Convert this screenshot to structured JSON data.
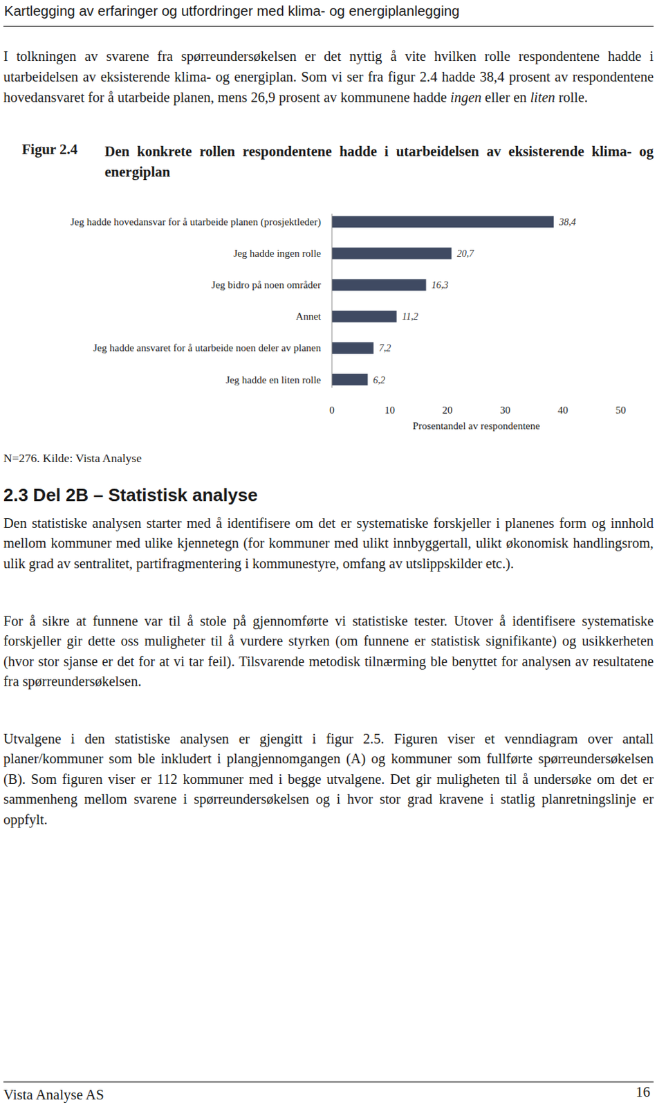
{
  "header": {
    "title": "Kartlegging av erfaringer og utfordringer med klima- og energiplanlegging"
  },
  "intro": {
    "runs": [
      {
        "text": "I tolkningen av svarene fra spørreundersøkelsen er det nyttig å vite hvilken rolle respondentene hadde i utarbeidelsen av eksisterende klima- og energiplan. Som vi ser fra figur 2.4 hadde 38,4 prosent av respondentene hovedansvaret for å utarbeide planen, mens 26,9 prosent av kommunene hadde ",
        "style": "normal"
      },
      {
        "text": "ingen",
        "style": "italic"
      },
      {
        "text": " eller en ",
        "style": "normal"
      },
      {
        "text": "liten",
        "style": "italic"
      },
      {
        "text": " rolle.",
        "style": "normal"
      }
    ]
  },
  "figure": {
    "label": "Figur 2.4",
    "caption": "Den konkrete rollen respondentene hadde i utarbeidelsen av eksisterende klima- og energiplan",
    "note": "N=276. Kilde: Vista Analyse"
  },
  "chart_data": {
    "type": "bar",
    "orientation": "horizontal",
    "categories": [
      "Jeg hadde hovedansvar for å utarbeide planen (prosjektleder)",
      "Jeg hadde ingen rolle",
      "Jeg bidro på noen områder",
      "Annet",
      "Jeg hadde ansvaret for å utarbeide noen deler av planen",
      "Jeg hadde en liten rolle"
    ],
    "values": [
      38.4,
      20.7,
      16.3,
      11.2,
      7.2,
      6.2
    ],
    "value_labels": [
      "38,4",
      "20,7",
      "16,3",
      "11,2",
      "7,2",
      "6,2"
    ],
    "data_labels": true,
    "color": "#3f4a62",
    "xlim": [
      0,
      50
    ],
    "xticks": [
      0,
      10,
      20,
      30,
      40,
      50
    ],
    "x_label": "Prosentandel av respondentene",
    "grid": false
  },
  "section": {
    "heading": "2.3 Del 2B – Statistisk analyse",
    "paragraphs": [
      "Den statistiske analysen starter med å identifisere om det er systematiske forskjeller i planenes form og innhold mellom kommuner med ulike kjennetegn (for kommuner med ulikt innbyggertall, ulikt økonomisk handlingsrom, ulik grad av sentralitet, partifragmentering i kommunestyre, omfang av utslippskilder etc.).",
      "For å sikre at funnene var til å stole på gjennomførte vi statistiske tester. Utover å identifisere systematiske forskjeller gir dette oss muligheter til å vurdere styrken (om funnene er statistisk signifikante) og usikkerheten (hvor stor sjanse er det for at vi tar feil). Tilsvarende metodisk tilnærming ble benyttet for analysen av resultatene fra spørreundersøkelsen.",
      "Utvalgene i den statistiske analysen er gjengitt i figur 2.5. Figuren viser et venndiagram over antall planer/kommuner som ble inkludert i plangjennomgangen (A) og kommuner som fullførte spørreundersøkelsen (B). Som figuren viser er 112 kommuner med i begge utvalgene. Det gir muligheten til å undersøke om det er sammenheng mellom svarene i spørreundersøkelsen og i hvor stor grad kravene i statlig planretningslinje er oppfylt."
    ]
  },
  "footer": {
    "publisher": "Vista Analyse AS",
    "page": "16"
  }
}
